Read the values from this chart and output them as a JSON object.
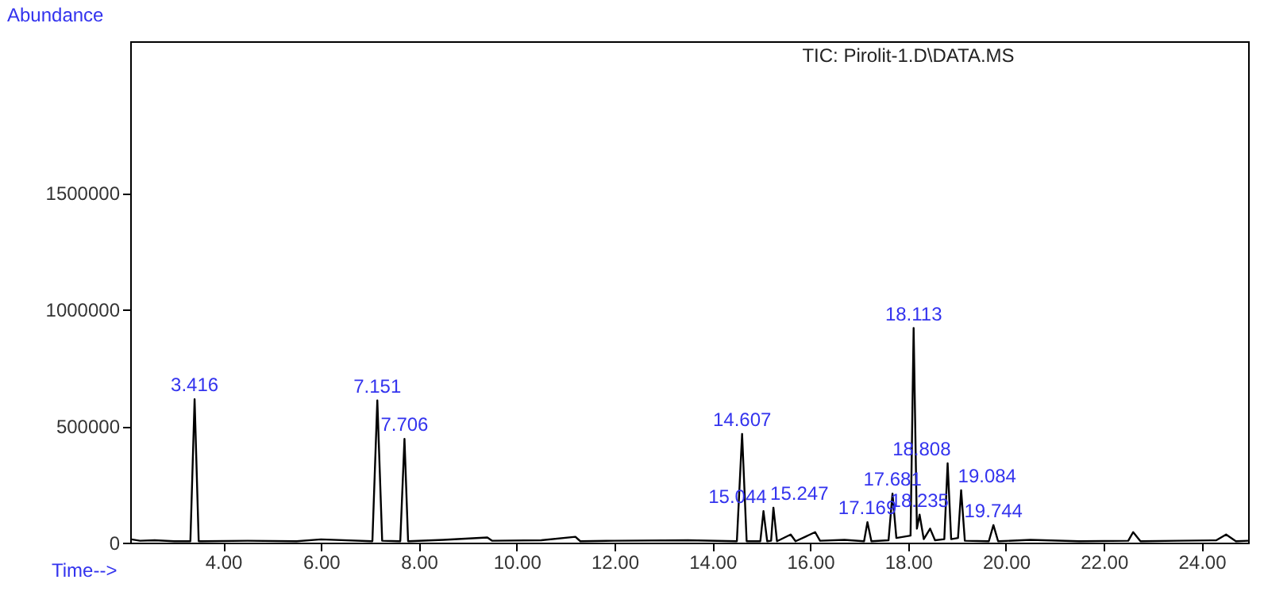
{
  "chart_data": {
    "type": "line",
    "title": "TIC: Pirolit-1.D\\DATA.MS",
    "xlabel": "Time-->",
    "ylabel": "Abundance",
    "x": [
      2.1,
      2.3,
      2.6,
      3.0,
      3.33,
      3.416,
      3.5,
      4.5,
      5.5,
      6.0,
      7.05,
      7.151,
      7.25,
      7.62,
      7.706,
      7.78,
      8.5,
      9.4,
      9.5,
      10.5,
      11.2,
      11.3,
      12.0,
      13.5,
      14.5,
      14.607,
      14.7,
      14.98,
      15.044,
      15.12,
      15.2,
      15.247,
      15.32,
      15.6,
      15.7,
      16.1,
      16.2,
      16.7,
      17.1,
      17.169,
      17.25,
      17.6,
      17.681,
      17.76,
      18.05,
      18.113,
      18.18,
      18.235,
      18.32,
      18.45,
      18.55,
      18.74,
      18.808,
      18.88,
      19.02,
      19.084,
      19.16,
      19.65,
      19.744,
      19.84,
      20.5,
      21.5,
      22.5,
      22.6,
      22.75,
      23.5,
      24.3,
      24.5,
      24.7,
      24.95
    ],
    "series": [
      {
        "color": "#000000",
        "values": [
          15000,
          8000,
          10000,
          6000,
          6000,
          615000,
          6000,
          8000,
          6000,
          14000,
          6000,
          610000,
          8000,
          6000,
          445000,
          6000,
          12000,
          22000,
          8000,
          10000,
          25000,
          6000,
          8000,
          10000,
          6000,
          466000,
          6000,
          6000,
          135000,
          6000,
          8000,
          150000,
          6000,
          35000,
          6000,
          45000,
          8000,
          12000,
          6000,
          88000,
          6000,
          10000,
          210000,
          20000,
          30000,
          920000,
          60000,
          120000,
          15000,
          60000,
          10000,
          15000,
          340000,
          15000,
          20000,
          225000,
          8000,
          6000,
          75000,
          6000,
          12000,
          6000,
          8000,
          45000,
          6000,
          8000,
          10000,
          35000,
          6000,
          8000
        ]
      }
    ],
    "xlim": [
      2.1,
      24.95
    ],
    "ylim": [
      0,
      2150000
    ],
    "xticks": [
      {
        "value": 4,
        "label": "4.00"
      },
      {
        "value": 6,
        "label": "6.00"
      },
      {
        "value": 8,
        "label": "8.00"
      },
      {
        "value": 10,
        "label": "10.00"
      },
      {
        "value": 12,
        "label": "12.00"
      },
      {
        "value": 14,
        "label": "14.00"
      },
      {
        "value": 16,
        "label": "16.00"
      },
      {
        "value": 18,
        "label": "18.00"
      },
      {
        "value": 20,
        "label": "20.00"
      },
      {
        "value": 22,
        "label": "22.00"
      },
      {
        "value": 24,
        "label": "24.00"
      }
    ],
    "yticks": [
      0,
      500000,
      1000000,
      1500000
    ],
    "annotations": [
      {
        "text": "3.416",
        "x": 3.416,
        "y": 615000
      },
      {
        "text": "7.151",
        "x": 7.151,
        "y": 610000
      },
      {
        "text": "7.706",
        "x": 7.706,
        "y": 445000
      },
      {
        "text": "14.607",
        "x": 14.607,
        "y": 466000
      },
      {
        "text": "15.044",
        "x": 15.044,
        "y": 135000
      },
      {
        "text": "15.247",
        "x": 15.247,
        "y": 150000
      },
      {
        "text": "17.169",
        "x": 17.169,
        "y": 88000
      },
      {
        "text": "17.681",
        "x": 17.681,
        "y": 210000
      },
      {
        "text": "18.113",
        "x": 18.113,
        "y": 920000
      },
      {
        "text": "18.235",
        "x": 18.235,
        "y": 120000
      },
      {
        "text": "18.808",
        "x": 18.808,
        "y": 340000
      },
      {
        "text": "19.084",
        "x": 19.084,
        "y": 225000
      },
      {
        "text": "19.744",
        "x": 19.744,
        "y": 75000
      }
    ]
  }
}
